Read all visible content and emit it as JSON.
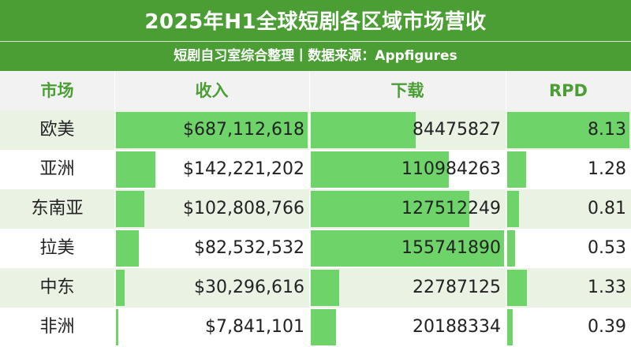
{
  "header": {
    "title": "2025年H1全球短剧各区域市场营收",
    "subtitle": "短剧自习室综合整理丨数据来源：Appfigures"
  },
  "table": {
    "columns": [
      "市场",
      "收入",
      "下载",
      "RPD"
    ],
    "rows": [
      {
        "region": "欧美",
        "revenue": "$687,112,618",
        "downloads": "84475827",
        "rpd": "8.13"
      },
      {
        "region": "亚洲",
        "revenue": "$142,221,202",
        "downloads": "110984263",
        "rpd": "1.28"
      },
      {
        "region": "东南亚",
        "revenue": "$102,808,766",
        "downloads": "127512249",
        "rpd": "0.81"
      },
      {
        "region": "拉美",
        "revenue": "$82,532,532",
        "downloads": "155741890",
        "rpd": "0.53"
      },
      {
        "region": "中东",
        "revenue": "$30,296,616",
        "downloads": "22787125",
        "rpd": "1.33"
      },
      {
        "region": "非洲",
        "revenue": "$7,841,101",
        "downloads": "20188334",
        "rpd": "0.39"
      }
    ]
  },
  "colors": {
    "header_green": "#4a9e34",
    "bar_green": "#6ed46a",
    "row_tint": "#eaf3e3"
  }
}
